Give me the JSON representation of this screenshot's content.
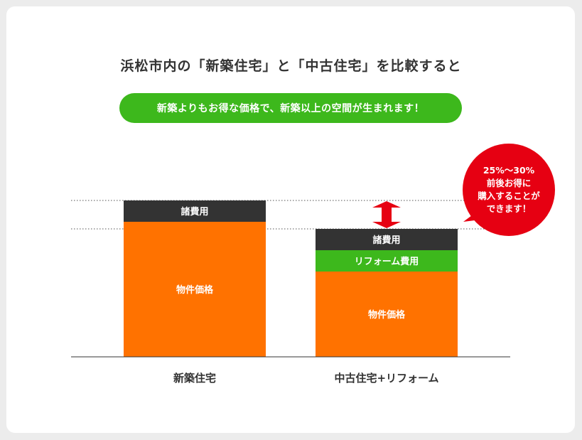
{
  "header": {
    "title": "浜松市内の「新築住宅」と「中古住宅」を比較すると",
    "subtitle": "新築よりもお得な価格で、新築以上の空間が生まれます！"
  },
  "callout": {
    "lines": [
      "25%〜30%",
      "前後お得に",
      "購入することが",
      "できます！"
    ]
  },
  "colors": {
    "property": "#ff7200",
    "reform": "#3db81c",
    "fees": "#333333",
    "arrow": "#e60012",
    "bubble": "#e60012"
  },
  "chart_data": {
    "type": "bar",
    "stacked": true,
    "categories": [
      "新築住宅",
      "中古住宅+リフォーム"
    ],
    "series": [
      {
        "name": "物件価格",
        "values": [
          190,
          120
        ]
      },
      {
        "name": "リフォーム費用",
        "values": [
          0,
          30
        ]
      },
      {
        "name": "諸費用",
        "values": [
          30,
          30
        ]
      }
    ],
    "ylim": [
      0,
      220
    ],
    "grid": false
  }
}
